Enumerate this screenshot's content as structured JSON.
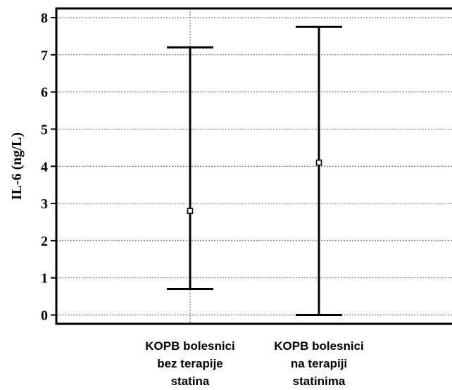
{
  "chart_data": {
    "type": "errorbar",
    "ylabel": "IL-6 (ng/L)",
    "xlabel": "",
    "ylim": [
      0,
      8
    ],
    "yticks": [
      0,
      1,
      2,
      3,
      4,
      5,
      6,
      7,
      8
    ],
    "grid": true,
    "categories": [
      [
        "KOPB bolesnici",
        "bez terapije",
        "statina"
      ],
      [
        "KOPB bolesnici",
        "na terapiji",
        "statinima"
      ]
    ],
    "series": [
      {
        "center": 2.8,
        "low": 0.7,
        "high": 7.2
      },
      {
        "center": 4.1,
        "low": 0.0,
        "high": 7.75
      }
    ]
  }
}
